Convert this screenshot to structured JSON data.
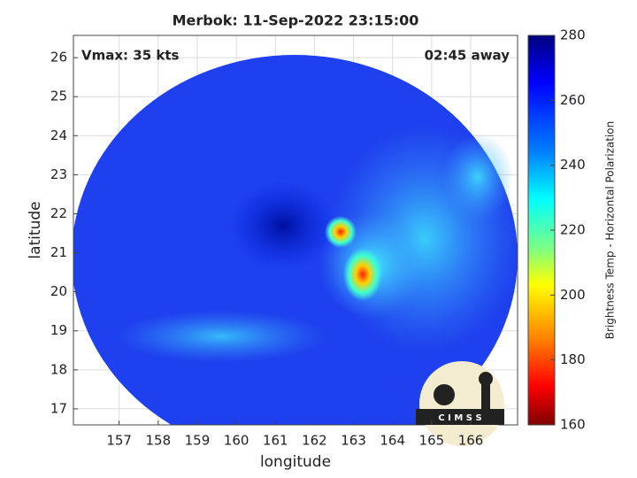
{
  "chart_data": {
    "type": "image",
    "title": "Merbok: 11-Sep-2022 23:15:00",
    "x_label": "longitude",
    "y_label": "latitude",
    "annotations": [
      "Vmax: 35 kts",
      "02:45 away"
    ],
    "logo_text": "C I M S S",
    "xlim": [
      155.83,
      167.2
    ],
    "xticks": [
      157,
      158,
      159,
      160,
      161,
      162,
      163,
      164,
      165,
      166
    ],
    "ylim": [
      16.59,
      26.57
    ],
    "yticks": [
      17,
      18,
      19,
      20,
      21,
      22,
      23,
      24,
      25,
      26
    ],
    "grid": true,
    "colorbar": {
      "label": "Brightness Temp - Horizontal Polarization",
      "clim": [
        160,
        280
      ],
      "ticks": [
        160,
        180,
        200,
        220,
        240,
        260,
        280
      ]
    }
  }
}
